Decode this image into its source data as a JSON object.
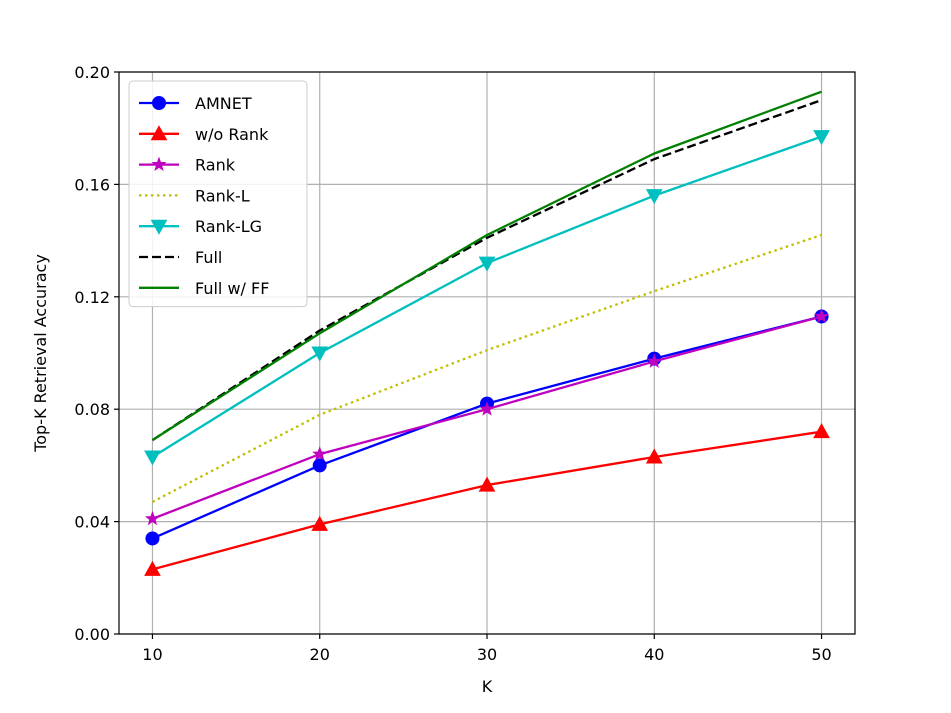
{
  "chart_data": {
    "type": "line",
    "title": "",
    "xlabel": "K",
    "ylabel": "Top-K Retrieval Accuracy",
    "x": [
      10,
      20,
      30,
      40,
      50
    ],
    "xlim": [
      8,
      52
    ],
    "ylim": [
      0.0,
      0.2
    ],
    "xticks": [
      "10",
      "20",
      "30",
      "40",
      "50"
    ],
    "yticks": [
      "0.00",
      "0.04",
      "0.08",
      "0.12",
      "0.16",
      "0.20"
    ],
    "grid": true,
    "legend_position": "top-left",
    "series": [
      {
        "name": "AMNET",
        "color": "#0000ff",
        "marker": "circle",
        "linestyle": "solid",
        "values": [
          0.034,
          0.06,
          0.082,
          0.098,
          0.113
        ]
      },
      {
        "name": "w/o Rank",
        "color": "#ff0000",
        "marker": "triangle-up",
        "linestyle": "solid",
        "values": [
          0.023,
          0.039,
          0.053,
          0.063,
          0.072
        ]
      },
      {
        "name": "Rank",
        "color": "#bf00bf",
        "marker": "star",
        "linestyle": "solid",
        "values": [
          0.041,
          0.064,
          0.08,
          0.097,
          0.113
        ]
      },
      {
        "name": "Rank-L",
        "color": "#bfbf00",
        "marker": "none",
        "linestyle": "dotted",
        "values": [
          0.047,
          0.078,
          0.101,
          0.122,
          0.142
        ]
      },
      {
        "name": "Rank-LG",
        "color": "#00bfbf",
        "marker": "triangle-down",
        "linestyle": "solid",
        "values": [
          0.063,
          0.1,
          0.132,
          0.156,
          0.177
        ]
      },
      {
        "name": "Full",
        "color": "#000000",
        "marker": "none",
        "linestyle": "dashed",
        "values": [
          0.069,
          0.108,
          0.141,
          0.169,
          0.19
        ]
      },
      {
        "name": "Full w/ FF",
        "color": "#008000",
        "marker": "none",
        "linestyle": "solid",
        "values": [
          0.069,
          0.107,
          0.142,
          0.171,
          0.193
        ]
      }
    ]
  }
}
